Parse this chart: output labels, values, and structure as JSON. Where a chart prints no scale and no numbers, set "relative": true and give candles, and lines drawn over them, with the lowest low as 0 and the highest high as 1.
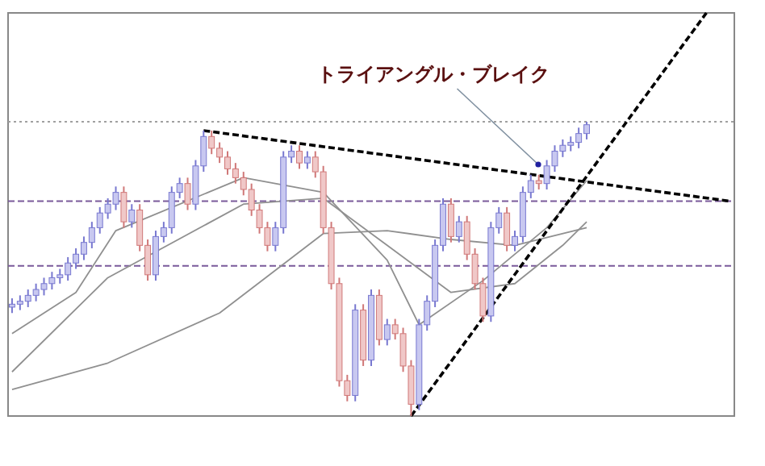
{
  "chart_data": {
    "type": "candlestick",
    "relative": true,
    "categories": [
      null,
      null,
      null,
      null,
      null,
      null,
      null,
      null,
      null,
      null,
      null,
      null,
      null,
      null,
      null,
      null,
      null,
      null,
      null,
      null,
      null,
      null,
      null,
      null,
      null,
      null,
      null,
      null,
      null,
      null,
      null,
      null,
      null,
      null,
      null,
      null,
      null,
      null,
      null,
      null,
      null,
      null,
      null,
      null,
      null,
      null,
      null,
      null,
      null,
      null,
      null,
      null,
      null,
      null,
      null,
      null,
      null,
      null,
      null,
      null,
      null,
      null,
      null,
      null,
      null,
      null,
      null,
      null,
      null,
      null,
      null,
      null,
      null,
      null,
      null,
      null,
      null,
      null,
      null,
      null,
      null,
      null,
      null,
      null,
      null,
      null,
      null,
      null,
      null,
      null,
      null
    ],
    "ohlc": [
      [
        0.37,
        0.4,
        0.35,
        0.38
      ],
      [
        0.38,
        0.41,
        0.36,
        0.39
      ],
      [
        0.39,
        0.43,
        0.37,
        0.41
      ],
      [
        0.41,
        0.45,
        0.39,
        0.43
      ],
      [
        0.43,
        0.47,
        0.41,
        0.45
      ],
      [
        0.45,
        0.49,
        0.43,
        0.47
      ],
      [
        0.47,
        0.5,
        0.45,
        0.48
      ],
      [
        0.48,
        0.54,
        0.46,
        0.52
      ],
      [
        0.52,
        0.57,
        0.5,
        0.55
      ],
      [
        0.55,
        0.61,
        0.53,
        0.59
      ],
      [
        0.59,
        0.66,
        0.57,
        0.64
      ],
      [
        0.64,
        0.71,
        0.62,
        0.69
      ],
      [
        0.69,
        0.74,
        0.67,
        0.72
      ],
      [
        0.72,
        0.78,
        0.7,
        0.76
      ],
      [
        0.76,
        0.78,
        0.64,
        0.66
      ],
      [
        0.66,
        0.72,
        0.64,
        0.7
      ],
      [
        0.7,
        0.72,
        0.56,
        0.58
      ],
      [
        0.58,
        0.6,
        0.46,
        0.48
      ],
      [
        0.48,
        0.63,
        0.46,
        0.61
      ],
      [
        0.61,
        0.66,
        0.59,
        0.64
      ],
      [
        0.64,
        0.78,
        0.62,
        0.76
      ],
      [
        0.76,
        0.81,
        0.74,
        0.79
      ],
      [
        0.79,
        0.81,
        0.7,
        0.72
      ],
      [
        0.72,
        0.87,
        0.7,
        0.85
      ],
      [
        0.85,
        0.97,
        0.83,
        0.95
      ],
      [
        0.95,
        0.97,
        0.89,
        0.91
      ],
      [
        0.91,
        0.93,
        0.86,
        0.88
      ],
      [
        0.88,
        0.9,
        0.82,
        0.84
      ],
      [
        0.84,
        0.86,
        0.79,
        0.81
      ],
      [
        0.81,
        0.83,
        0.75,
        0.77
      ],
      [
        0.77,
        0.79,
        0.68,
        0.7
      ],
      [
        0.7,
        0.72,
        0.62,
        0.64
      ],
      [
        0.64,
        0.66,
        0.56,
        0.58
      ],
      [
        0.58,
        0.66,
        0.56,
        0.64
      ],
      [
        0.64,
        0.9,
        0.62,
        0.88
      ],
      [
        0.88,
        0.92,
        0.86,
        0.9
      ],
      [
        0.9,
        0.92,
        0.84,
        0.86
      ],
      [
        0.86,
        0.9,
        0.84,
        0.88
      ],
      [
        0.88,
        0.9,
        0.81,
        0.83
      ],
      [
        0.83,
        0.85,
        0.62,
        0.64
      ],
      [
        0.64,
        0.66,
        0.43,
        0.45
      ],
      [
        0.45,
        0.47,
        0.1,
        0.12
      ],
      [
        0.12,
        0.14,
        0.05,
        0.07
      ],
      [
        0.07,
        0.38,
        0.05,
        0.36
      ],
      [
        0.36,
        0.38,
        0.17,
        0.19
      ],
      [
        0.19,
        0.43,
        0.17,
        0.41
      ],
      [
        0.41,
        0.43,
        0.24,
        0.26
      ],
      [
        0.26,
        0.33,
        0.24,
        0.31
      ],
      [
        0.31,
        0.33,
        0.26,
        0.28
      ],
      [
        0.28,
        0.3,
        0.15,
        0.17
      ],
      [
        0.17,
        0.19,
        0,
        0.04
      ],
      [
        0.04,
        0.33,
        0.02,
        0.31
      ],
      [
        0.31,
        0.41,
        0.29,
        0.39
      ],
      [
        0.39,
        0.6,
        0.37,
        0.58
      ],
      [
        0.58,
        0.74,
        0.56,
        0.72
      ],
      [
        0.72,
        0.74,
        0.59,
        0.61
      ],
      [
        0.61,
        0.68,
        0.59,
        0.66
      ],
      [
        0.66,
        0.68,
        0.53,
        0.55
      ],
      [
        0.55,
        0.57,
        0.43,
        0.45
      ],
      [
        0.45,
        0.47,
        0.32,
        0.34
      ],
      [
        0.34,
        0.66,
        0.32,
        0.64
      ],
      [
        0.64,
        0.71,
        0.62,
        0.69
      ],
      [
        0.69,
        0.71,
        0.56,
        0.58
      ],
      [
        0.58,
        0.63,
        0.56,
        0.61
      ],
      [
        0.61,
        0.78,
        0.59,
        0.76
      ],
      [
        0.76,
        0.82,
        0.74,
        0.8
      ],
      [
        0.8,
        0.82,
        0.77,
        0.79
      ],
      [
        0.79,
        0.87,
        0.77,
        0.85
      ],
      [
        0.85,
        0.92,
        0.83,
        0.9
      ],
      [
        0.9,
        0.94,
        0.88,
        0.92
      ],
      [
        0.92,
        0.95,
        0.9,
        0.93
      ],
      [
        0.93,
        0.98,
        0.91,
        0.96
      ],
      [
        0.96,
        1,
        0.94,
        0.99
      ],
      null,
      null,
      null,
      null,
      null,
      null,
      null,
      null,
      null,
      null,
      null,
      null,
      null,
      null,
      null,
      null,
      null,
      null
    ],
    "series": [
      {
        "type": "line",
        "color": "#909090",
        "line_style": "solid",
        "values": [
          0.28,
          null,
          null,
          null,
          null,
          null,
          null,
          null,
          0.42,
          null,
          null,
          null,
          null,
          0.63,
          null,
          null,
          null,
          null,
          null,
          null,
          null,
          null,
          null,
          null,
          null,
          null,
          null,
          null,
          null,
          0.81,
          null,
          null,
          null,
          null,
          null,
          null,
          null,
          null,
          null,
          0.76,
          null,
          null,
          null,
          null,
          null,
          null,
          null,
          0.53,
          null,
          null,
          null,
          0.31,
          null,
          null,
          null,
          null,
          null,
          null,
          null,
          0.46,
          null,
          null,
          null,
          null,
          null,
          null,
          null,
          0.64,
          null,
          null,
          null,
          null,
          0.8,
          null,
          null,
          null,
          null,
          null,
          null,
          null,
          null,
          null,
          null,
          null,
          null,
          null,
          null,
          null,
          null,
          null,
          null
        ]
      },
      {
        "type": "line",
        "color": "#909090",
        "line_style": "solid",
        "values": [
          0.15,
          null,
          null,
          null,
          null,
          null,
          null,
          null,
          null,
          null,
          null,
          null,
          0.47,
          null,
          null,
          null,
          null,
          null,
          null,
          null,
          null,
          null,
          null,
          null,
          null,
          null,
          null,
          null,
          null,
          0.72,
          null,
          null,
          null,
          null,
          null,
          null,
          null,
          null,
          null,
          0.74,
          null,
          null,
          null,
          null,
          null,
          null,
          null,
          0.58,
          null,
          null,
          null,
          null,
          null,
          null,
          null,
          0.42,
          null,
          null,
          null,
          null,
          null,
          null,
          null,
          0.45,
          null,
          null,
          null,
          null,
          null,
          0.58,
          null,
          null,
          0.66,
          null,
          null,
          null,
          null,
          null,
          null,
          null,
          null,
          null,
          null,
          null,
          null,
          null,
          null,
          null,
          null,
          null,
          null
        ]
      },
      {
        "type": "line",
        "color": "#909090",
        "line_style": "solid",
        "values": [
          0.09,
          null,
          null,
          null,
          null,
          null,
          null,
          null,
          null,
          null,
          null,
          null,
          0.18,
          null,
          null,
          null,
          null,
          null,
          null,
          null,
          null,
          null,
          null,
          null,
          null,
          null,
          0.35,
          null,
          null,
          null,
          null,
          null,
          null,
          null,
          null,
          null,
          null,
          null,
          null,
          0.62,
          null,
          null,
          null,
          null,
          null,
          null,
          null,
          0.63,
          null,
          null,
          null,
          null,
          null,
          null,
          null,
          0.6,
          null,
          null,
          null,
          null,
          null,
          null,
          null,
          0.58,
          null,
          null,
          null,
          null,
          null,
          null,
          null,
          null,
          0.64,
          null,
          null,
          null,
          null,
          null,
          null,
          null,
          null,
          null,
          null,
          null,
          null,
          null,
          null,
          null,
          null,
          null,
          null
        ]
      },
      {
        "type": "line",
        "color": "#000000",
        "line_style": "dashed",
        "values": [
          null,
          null,
          null,
          null,
          null,
          null,
          null,
          null,
          null,
          null,
          null,
          null,
          null,
          null,
          null,
          null,
          null,
          null,
          null,
          null,
          null,
          null,
          null,
          null,
          0.97,
          null,
          null,
          null,
          null,
          null,
          null,
          null,
          null,
          null,
          null,
          null,
          null,
          null,
          null,
          null,
          null,
          null,
          null,
          null,
          null,
          null,
          null,
          null,
          null,
          null,
          null,
          null,
          null,
          null,
          null,
          null,
          null,
          null,
          null,
          null,
          null,
          null,
          null,
          null,
          null,
          null,
          null,
          null,
          null,
          null,
          null,
          null,
          null,
          null,
          null,
          null,
          null,
          null,
          null,
          null,
          null,
          null,
          null,
          null,
          null,
          null,
          null,
          null,
          null,
          null,
          0.73
        ]
      },
      {
        "type": "line",
        "color": "#000000",
        "line_style": "dashed",
        "values": [
          null,
          null,
          null,
          null,
          null,
          null,
          null,
          null,
          null,
          null,
          null,
          null,
          null,
          null,
          null,
          null,
          null,
          null,
          null,
          null,
          null,
          null,
          null,
          null,
          null,
          null,
          null,
          null,
          null,
          null,
          null,
          null,
          null,
          null,
          null,
          null,
          null,
          null,
          null,
          null,
          null,
          null,
          null,
          null,
          null,
          null,
          null,
          null,
          null,
          null,
          0,
          null,
          null,
          null,
          null,
          null,
          null,
          null,
          null,
          null,
          null,
          null,
          null,
          null,
          null,
          null,
          null,
          null,
          null,
          null,
          null,
          null,
          null,
          null,
          null,
          null,
          null,
          null,
          null,
          null,
          null,
          null,
          null,
          null,
          null,
          null,
          null,
          1.37,
          null,
          null,
          null
        ]
      }
    ],
    "ref_lines": [
      {
        "axis": "y",
        "value": 1,
        "color": "#a0a0a0",
        "line_style": "dotted"
      },
      {
        "axis": "y",
        "value": 0.73,
        "color": "#7a5a9a",
        "line_style": "dashed"
      },
      {
        "axis": "y",
        "value": 0.51,
        "color": "#7a5a9a",
        "line_style": "dashed"
      }
    ],
    "annotations": [
      "トライアングル・ブレイク"
    ]
  }
}
